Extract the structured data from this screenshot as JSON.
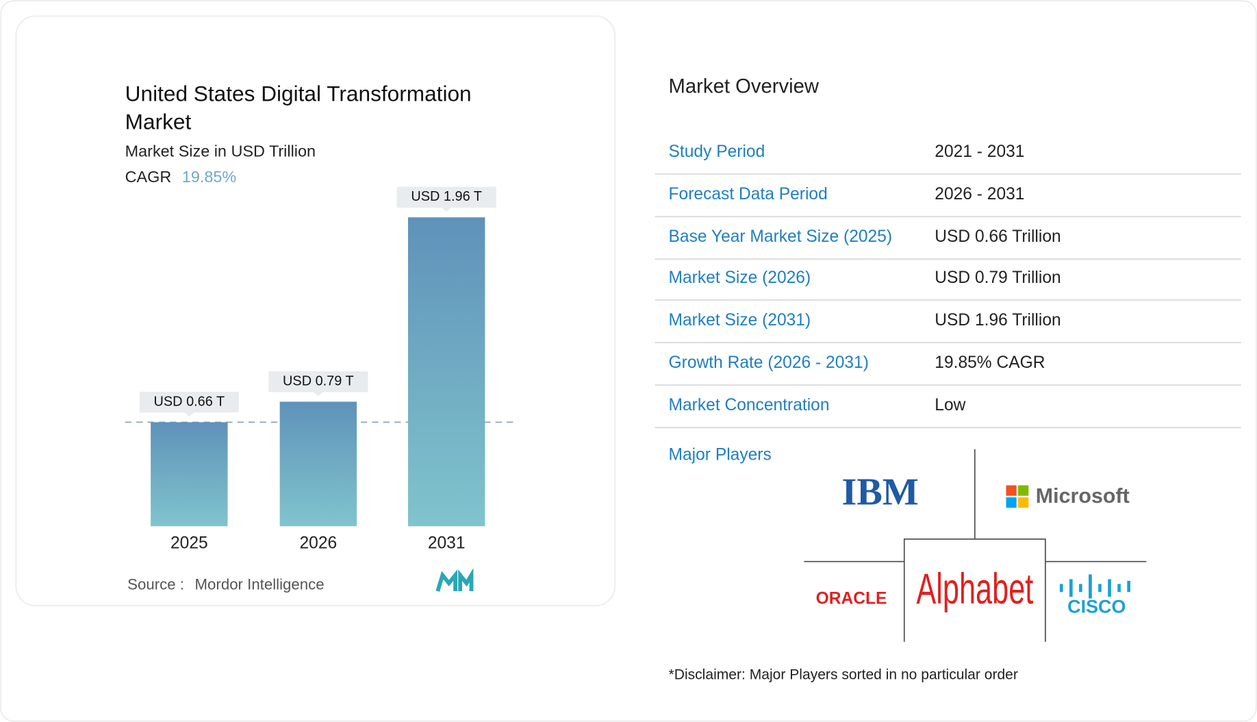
{
  "chart_data": {
    "type": "bar",
    "title": "United States Digital Transformation Market",
    "subtitle": "Market Size in USD Trillion",
    "cagr_label": "CAGR",
    "cagr_value": "19.85%",
    "categories": [
      "2025",
      "2026",
      "2031"
    ],
    "values": [
      0.66,
      0.79,
      1.96
    ],
    "value_labels": [
      "USD 0.66 T",
      "USD 0.79 T",
      "USD 1.96 T"
    ],
    "ylim": [
      0,
      2
    ],
    "source_label": "Source :",
    "source": "Mordor Intelligence"
  },
  "overview": {
    "title": "Market Overview",
    "rows": [
      [
        "Study Period",
        "2021 - 2031"
      ],
      [
        "Forecast Data Period",
        "2026 - 2031"
      ],
      [
        "Base Year Market Size (2025)",
        "USD 0.66 Trillion"
      ],
      [
        "Market Size (2026)",
        "USD 0.79 Trillion"
      ],
      [
        "Market Size (2031)",
        "USD 1.96 Trillion"
      ],
      [
        "Growth Rate (2026 - 2031)",
        "19.85% CAGR"
      ],
      [
        "Market Concentration",
        "Low"
      ]
    ],
    "players_label": "Major Players",
    "players": [
      "IBM",
      "Microsoft",
      "ORACLE",
      "Alphabet",
      "CISCO"
    ],
    "disclaimer": "*Disclaimer: Major Players sorted in no particular order"
  }
}
